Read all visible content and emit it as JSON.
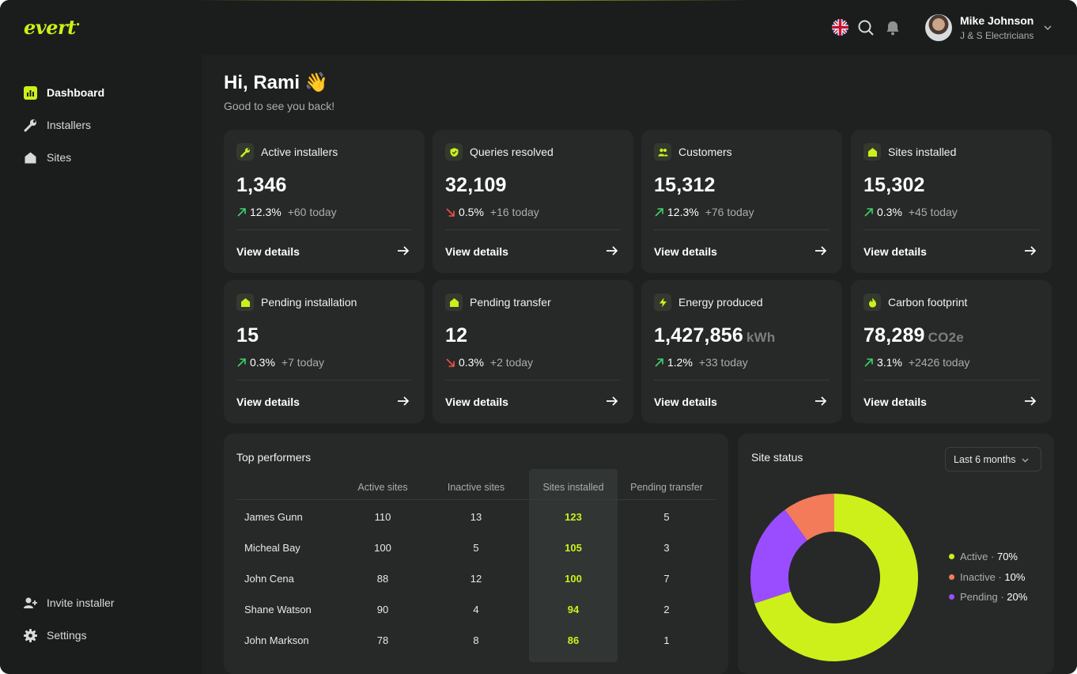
{
  "brand": {
    "logo": "evert",
    "accent": "#cdf01a"
  },
  "header": {
    "user_name": "Mike Johnson",
    "user_org": "J & S Electricians",
    "icons": [
      "uk-flag-icon",
      "search-icon",
      "bell-icon",
      "chevron-down-icon"
    ]
  },
  "sidebar": {
    "items": [
      {
        "label": "Dashboard",
        "icon": "bar-chart-icon",
        "active": true
      },
      {
        "label": "Installers",
        "icon": "wrench-icon",
        "active": false
      },
      {
        "label": "Sites",
        "icon": "house-icon",
        "active": false
      }
    ],
    "bottom": [
      {
        "label": "Invite installer",
        "icon": "user-plus-icon"
      },
      {
        "label": "Settings",
        "icon": "gear-icon"
      }
    ]
  },
  "greeting": {
    "title": "Hi, Rami",
    "emoji": "👋",
    "subtitle": "Good to see you back!"
  },
  "cards": [
    {
      "title": "Active installers",
      "icon": "wrench-icon",
      "value": "1,346",
      "unit": "",
      "trend": "up",
      "pct": "12.3%",
      "today": "+60 today",
      "link": "View details"
    },
    {
      "title": "Queries resolved",
      "icon": "shield-check-icon",
      "value": "32,109",
      "unit": "",
      "trend": "down",
      "pct": "0.5%",
      "today": "+16 today",
      "link": "View details"
    },
    {
      "title": "Customers",
      "icon": "users-icon",
      "value": "15,312",
      "unit": "",
      "trend": "up",
      "pct": "12.3%",
      "today": "+76 today",
      "link": "View details"
    },
    {
      "title": "Sites installed",
      "icon": "house-icon",
      "value": "15,302",
      "unit": "",
      "trend": "up",
      "pct": "0.3%",
      "today": "+45 today",
      "link": "View details"
    },
    {
      "title": "Pending installation",
      "icon": "house-icon",
      "value": "15",
      "unit": "",
      "trend": "up",
      "pct": "0.3%",
      "today": "+7 today",
      "link": "View details"
    },
    {
      "title": "Pending transfer",
      "icon": "house-icon",
      "value": "12",
      "unit": "",
      "trend": "down",
      "pct": "0.3%",
      "today": "+2 today",
      "link": "View details"
    },
    {
      "title": "Energy produced",
      "icon": "lightning-icon",
      "value": "1,427,856",
      "unit": "kWh",
      "trend": "up",
      "pct": "1.2%",
      "today": "+33 today",
      "link": "View details"
    },
    {
      "title": "Carbon footprint",
      "icon": "flame-icon",
      "value": "78,289",
      "unit": "CO2e",
      "trend": "up",
      "pct": "3.1%",
      "today": "+2426 today",
      "link": "View details"
    }
  ],
  "top_performers": {
    "title": "Top performers",
    "columns": [
      "Active sites",
      "Inactive sites",
      "Sites installed",
      "Pending transfer"
    ],
    "rows": [
      {
        "name": "James Gunn",
        "active": "110",
        "inactive": "13",
        "installed": "123",
        "pending": "5"
      },
      {
        "name": "Micheal Bay",
        "active": "100",
        "inactive": "5",
        "installed": "105",
        "pending": "3"
      },
      {
        "name": "John Cena",
        "active": "88",
        "inactive": "12",
        "installed": "100",
        "pending": "7"
      },
      {
        "name": "Shane Watson",
        "active": "90",
        "inactive": "4",
        "installed": "94",
        "pending": "2"
      },
      {
        "name": "John Markson",
        "active": "78",
        "inactive": "8",
        "installed": "86",
        "pending": "1"
      }
    ]
  },
  "site_status": {
    "title": "Site status",
    "range": "Last 6 months",
    "legend": [
      {
        "label": "Active",
        "value": "70%",
        "color": "#cdf01a"
      },
      {
        "label": "Inactive",
        "value": "10%",
        "color": "#f47b5a"
      },
      {
        "label": "Pending",
        "value": "20%",
        "color": "#9a4dff"
      }
    ]
  },
  "chart_data": {
    "type": "pie",
    "categories": [
      "Active",
      "Inactive",
      "Pending"
    ],
    "values": [
      70,
      10,
      20
    ],
    "colors": [
      "#cdf01a",
      "#f47b5a",
      "#9a4dff"
    ],
    "title": "Site status",
    "legend_position": "right"
  }
}
